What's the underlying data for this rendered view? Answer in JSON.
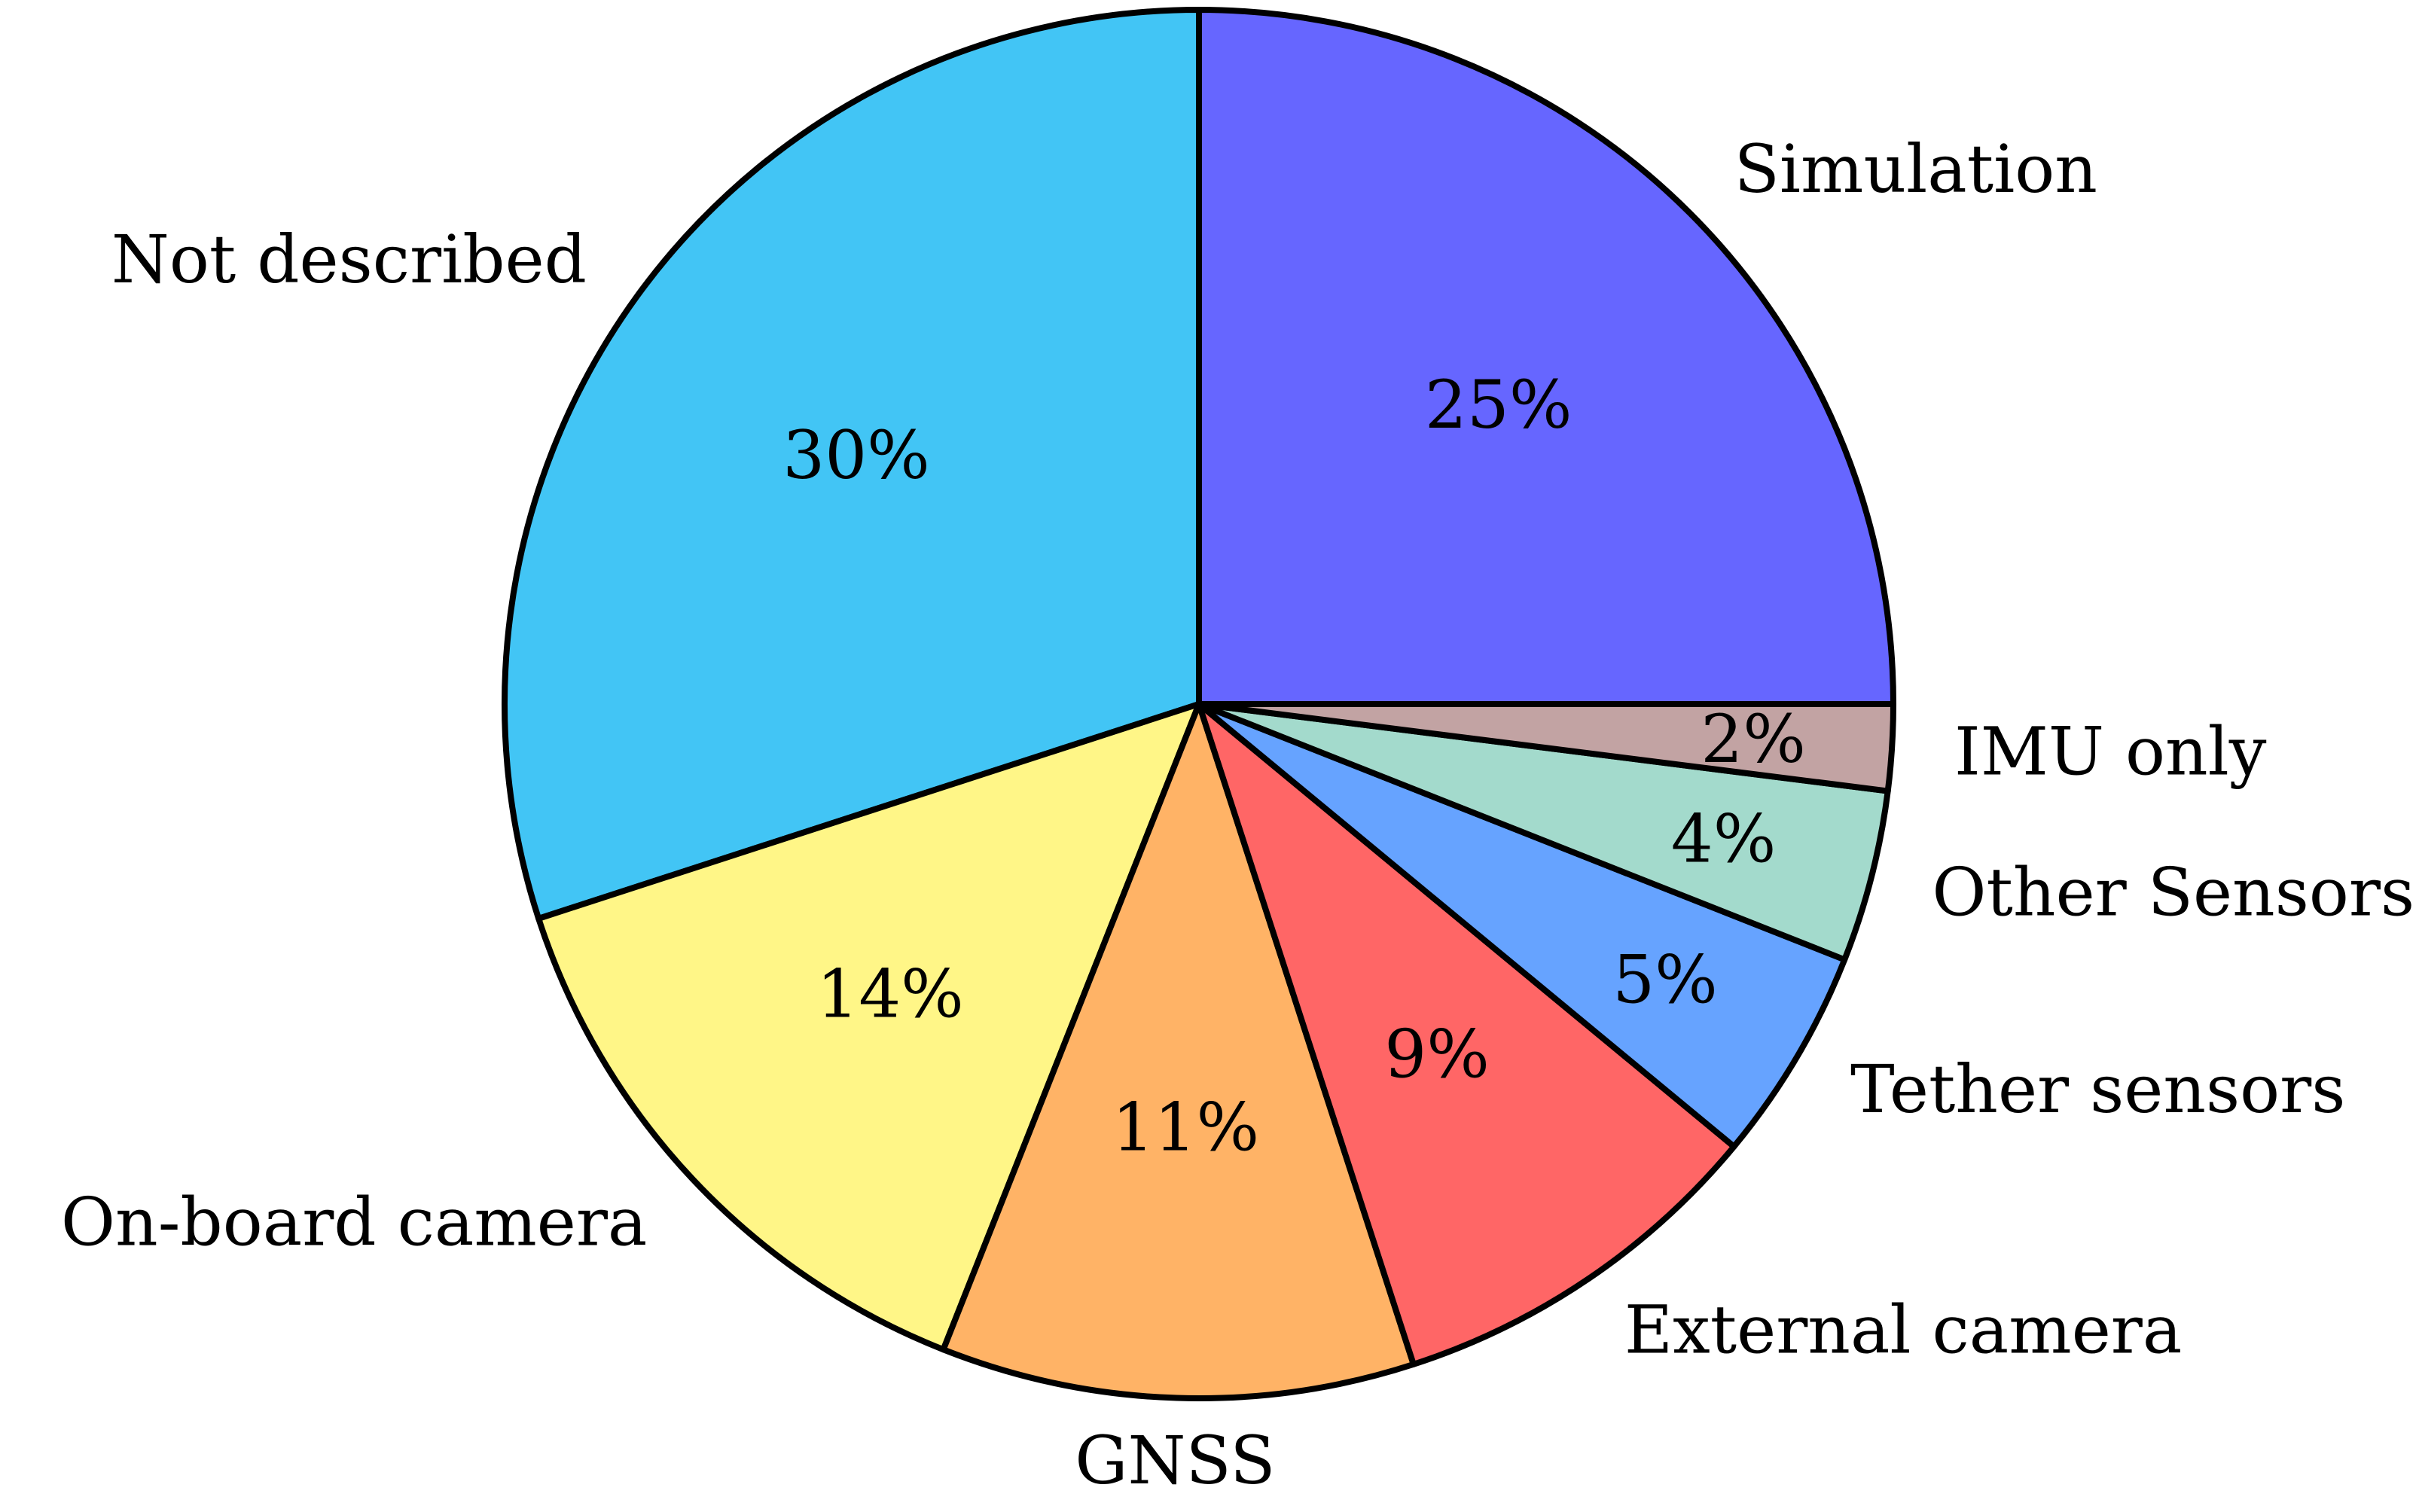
{
  "chart_data": {
    "type": "pie",
    "start": "3 o'clock",
    "direction": "counterclockwise",
    "slices": [
      {
        "label": "Simulation",
        "value": 25,
        "display": "25%",
        "color": "#6666ff"
      },
      {
        "label": "Not described",
        "value": 30,
        "display": "30%",
        "color": "#42c5f5"
      },
      {
        "label": "On-board camera",
        "value": 14,
        "display": "14%",
        "color": "#fff687"
      },
      {
        "label": "GNSS",
        "value": 11,
        "display": "11%",
        "color": "#ffb366"
      },
      {
        "label": "External camera",
        "value": 9,
        "display": "9%",
        "color": "#ff6666"
      },
      {
        "label": "Tether sensors",
        "value": 5,
        "display": "5%",
        "color": "#66a3ff"
      },
      {
        "label": "Other Sensors",
        "value": 4,
        "display": "4%",
        "color": "#a3dacc"
      },
      {
        "label": "IMU only",
        "value": 2,
        "display": "2%",
        "color": "#c2a3a3"
      }
    ]
  }
}
